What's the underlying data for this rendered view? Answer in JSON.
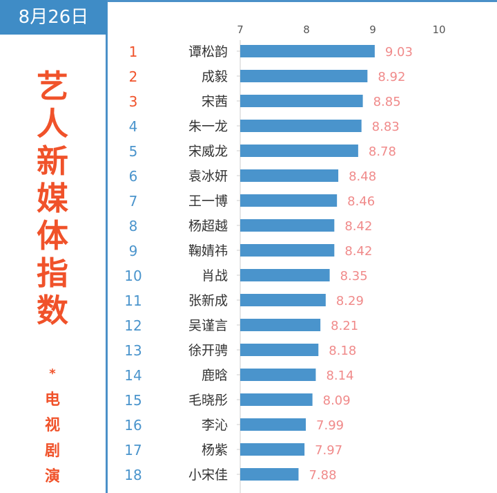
{
  "date": "8月26日",
  "title_chars": [
    "艺",
    "人",
    "新",
    "媒",
    "体",
    "指",
    "数"
  ],
  "star": "*",
  "subtitle_chars": [
    "电",
    "视",
    "剧",
    "演"
  ],
  "colors": {
    "bar": "#4a94cc",
    "top3_rank": "#f0522a",
    "rank": "#4a94cc",
    "value_label": "#f08a8a",
    "title": "#f0522a"
  },
  "chart_data": {
    "type": "bar",
    "orientation": "horizontal",
    "xlim": [
      7,
      10
    ],
    "xticks": [
      7,
      8,
      9,
      10
    ],
    "ranks": [
      1,
      2,
      3,
      4,
      5,
      6,
      7,
      8,
      9,
      10,
      11,
      12,
      13,
      14,
      15,
      16,
      17,
      18
    ],
    "categories": [
      "谭松韵",
      "成毅",
      "宋茜",
      "朱一龙",
      "宋威龙",
      "袁冰妍",
      "王一博",
      "杨超越",
      "鞠婧祎",
      "肖战",
      "张新成",
      "吴谨言",
      "徐开骋",
      "鹿晗",
      "毛晓彤",
      "李沁",
      "杨紫",
      "小宋佳"
    ],
    "values": [
      9.03,
      8.92,
      8.85,
      8.83,
      8.78,
      8.48,
      8.46,
      8.42,
      8.42,
      8.35,
      8.29,
      8.21,
      8.18,
      8.14,
      8.09,
      7.99,
      7.97,
      7.88
    ],
    "grid": false
  }
}
